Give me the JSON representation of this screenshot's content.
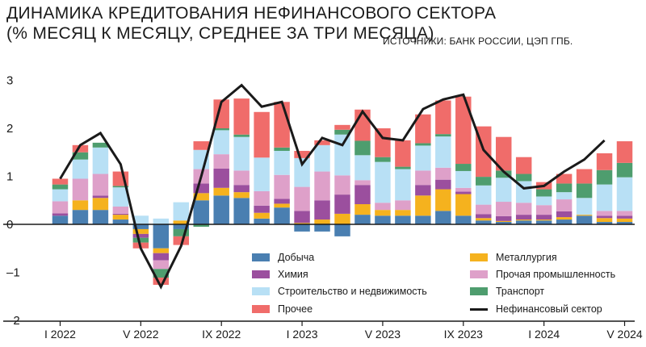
{
  "header": {
    "title_line1": "ДИНАМИКА КРЕДИТОВАНИЯ НЕФИНАНСОВОГО СЕКТОРА",
    "title_line2": "(% МЕСЯЦ К МЕСЯЦУ, СРЕДНЕЕ ЗА ТРИ МЕСЯЦА)",
    "source": "ИСТОЧНИКИ: БАНК РОССИИ, ЦЭП ГПБ."
  },
  "chart_data": {
    "type": "bar",
    "stacked": true,
    "grid": false,
    "legend_position": "bottom-right, inside plot",
    "ylim": [
      -2,
      3.2
    ],
    "yticks": [
      -2,
      -1,
      0,
      1,
      2,
      3
    ],
    "ytick_labels": [
      "–2",
      "–1",
      "0",
      "1",
      "2",
      "3"
    ],
    "x_tick_labels": [
      {
        "index": 0,
        "label": "I 2022"
      },
      {
        "index": 4,
        "label": "V 2022"
      },
      {
        "index": 8,
        "label": "IX 2022"
      },
      {
        "index": 12,
        "label": "I 2023"
      },
      {
        "index": 16,
        "label": "V 2023"
      },
      {
        "index": 20,
        "label": "IX 2023"
      },
      {
        "index": 24,
        "label": "I 2024"
      },
      {
        "index": 28,
        "label": "V 2024"
      }
    ],
    "categories": [
      "I 2022",
      "II 2022",
      "III 2022",
      "IV 2022",
      "V 2022",
      "VI 2022",
      "VII 2022",
      "VIII 2022",
      "IX 2022",
      "X 2022",
      "XI 2022",
      "XII 2022",
      "I 2023",
      "II 2023",
      "III 2023",
      "IV 2023",
      "V 2023",
      "VI 2023",
      "VII 2023",
      "VIII 2023",
      "IX 2023",
      "X 2023",
      "XI 2023",
      "XII 2023",
      "I 2024",
      "II 2024",
      "III 2024",
      "IV 2024",
      "V 2024"
    ],
    "series": [
      {
        "name": "Добыча",
        "color": "#4a7fb1",
        "values": [
          0.18,
          0.3,
          0.3,
          0.1,
          -0.1,
          -0.5,
          -0.1,
          0.5,
          0.6,
          0.55,
          0.12,
          0.35,
          -0.15,
          -0.15,
          -0.25,
          0.2,
          0.18,
          0.18,
          0.18,
          0.28,
          0.18,
          0.08,
          0.05,
          0.08,
          0.08,
          0.1,
          0.18,
          0.05,
          0.05
        ]
      },
      {
        "name": "Металлургия",
        "color": "#f5b21e",
        "values": [
          0.0,
          0.2,
          0.25,
          0.1,
          -0.1,
          -0.1,
          0.08,
          0.15,
          0.16,
          0.12,
          0.12,
          0.08,
          0.03,
          0.1,
          0.22,
          0.22,
          0.12,
          0.12,
          0.42,
          0.45,
          0.45,
          0.05,
          0.02,
          0.02,
          0.02,
          0.05,
          0.02,
          0.08,
          0.07
        ]
      },
      {
        "name": "Химия",
        "color": "#9b4f9e",
        "values": [
          0.05,
          0.0,
          0.05,
          0.02,
          -0.08,
          -0.15,
          0.0,
          0.2,
          0.4,
          0.15,
          0.15,
          0.1,
          0.25,
          0.4,
          0.4,
          0.4,
          0.0,
          0.0,
          0.22,
          0.2,
          0.05,
          0.08,
          0.1,
          0.1,
          0.1,
          0.12,
          0.0,
          0.05,
          0.06
        ]
      },
      {
        "name": "Прочая промышленность",
        "color": "#dea0c9",
        "values": [
          0.25,
          0.45,
          0.45,
          0.15,
          0.0,
          -0.18,
          0.0,
          0.3,
          0.3,
          0.3,
          0.3,
          0.5,
          0.5,
          0.6,
          0.4,
          0.1,
          0.15,
          0.2,
          0.3,
          0.25,
          0.08,
          0.2,
          0.3,
          0.25,
          0.2,
          0.25,
          0.0,
          0.1,
          0.1
        ]
      },
      {
        "name": "Строительство и недвижимость",
        "color": "#b8e0f5",
        "values": [
          0.25,
          0.4,
          0.55,
          0.4,
          0.18,
          0.12,
          0.38,
          0.4,
          0.5,
          0.7,
          0.7,
          0.5,
          0.6,
          0.55,
          0.85,
          0.52,
          0.85,
          0.65,
          0.52,
          0.65,
          0.35,
          0.4,
          0.5,
          0.45,
          0.18,
          0.15,
          0.35,
          0.55,
          0.7
        ]
      },
      {
        "name": "Транспорт",
        "color": "#4e9d6e",
        "values": [
          0.1,
          0.15,
          0.1,
          0.03,
          -0.1,
          -0.18,
          -0.15,
          -0.05,
          0.04,
          0.05,
          0.0,
          0.07,
          0.0,
          0.0,
          0.1,
          0.3,
          0.1,
          0.05,
          0.05,
          0.05,
          0.15,
          0.18,
          0.15,
          0.15,
          0.15,
          0.18,
          0.3,
          0.3,
          0.3
        ]
      },
      {
        "name": "Прочее",
        "color": "#f06c6a",
        "values": [
          0.12,
          0.15,
          0.0,
          0.3,
          -0.12,
          -0.15,
          -0.18,
          0.18,
          0.6,
          0.75,
          0.95,
          0.95,
          0.15,
          0.1,
          0.1,
          0.65,
          0.6,
          0.55,
          0.6,
          0.7,
          1.4,
          1.05,
          0.7,
          0.35,
          0.15,
          0.2,
          0.3,
          0.35,
          0.45
        ]
      }
    ],
    "line": {
      "name": "Нефинансовый сектор",
      "color": "#1a1a1a",
      "values": [
        0.95,
        1.65,
        1.9,
        1.25,
        -0.5,
        -1.3,
        -0.45,
        1.0,
        2.55,
        2.9,
        2.45,
        2.55,
        1.25,
        1.8,
        1.65,
        2.35,
        1.8,
        1.75,
        2.4,
        2.6,
        2.7,
        1.55,
        1.1,
        0.75,
        0.8,
        1.1,
        1.35,
        1.75,
        null
      ]
    }
  },
  "legend": {
    "items": [
      {
        "label": "Добыча",
        "color": "#4a7fb1",
        "kind": "swatch"
      },
      {
        "label": "Металлургия",
        "color": "#f5b21e",
        "kind": "swatch"
      },
      {
        "label": "Химия",
        "color": "#9b4f9e",
        "kind": "swatch"
      },
      {
        "label": "Прочая промышленность",
        "color": "#dea0c9",
        "kind": "swatch"
      },
      {
        "label": "Строительство и недвижимость",
        "color": "#b8e0f5",
        "kind": "swatch"
      },
      {
        "label": "Транспорт",
        "color": "#4e9d6e",
        "kind": "swatch"
      },
      {
        "label": "Прочее",
        "color": "#f06c6a",
        "kind": "swatch"
      },
      {
        "label": "Нефинансовый сектор",
        "color": "#1a1a1a",
        "kind": "line"
      }
    ]
  }
}
